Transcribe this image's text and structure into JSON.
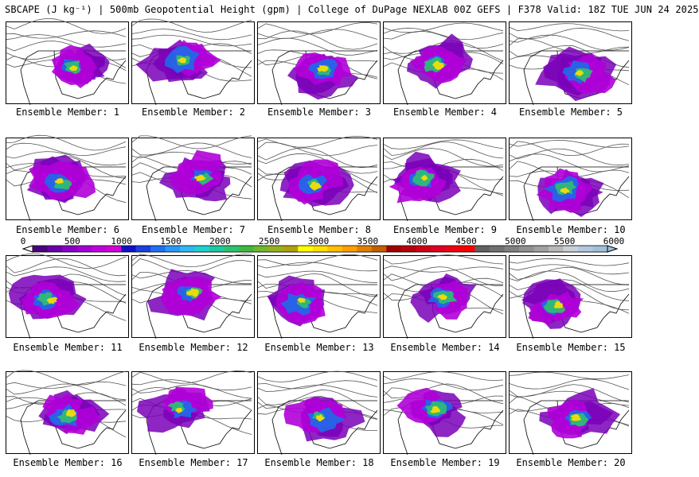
{
  "header": {
    "title": "SBCAPE (J kg⁻¹) | 500mb Geopotential Height (gpm) | College of DuPage NEXLAB 00Z GEFS | F378 Valid: 18Z TUE JUN 24 2025"
  },
  "panels": [
    {
      "label": "Ensemble Member: 1"
    },
    {
      "label": "Ensemble Member: 2"
    },
    {
      "label": "Ensemble Member: 3"
    },
    {
      "label": "Ensemble Member: 4"
    },
    {
      "label": "Ensemble Member: 5"
    },
    {
      "label": "Ensemble Member: 6"
    },
    {
      "label": "Ensemble Member: 7"
    },
    {
      "label": "Ensemble Member: 8"
    },
    {
      "label": "Ensemble Member: 9"
    },
    {
      "label": "Ensemble Member: 10"
    },
    {
      "label": "Ensemble Member: 11"
    },
    {
      "label": "Ensemble Member: 12"
    },
    {
      "label": "Ensemble Member: 13"
    },
    {
      "label": "Ensemble Member: 14"
    },
    {
      "label": "Ensemble Member: 15"
    },
    {
      "label": "Ensemble Member: 16"
    },
    {
      "label": "Ensemble Member: 17"
    },
    {
      "label": "Ensemble Member: 18"
    },
    {
      "label": "Ensemble Member: 19"
    },
    {
      "label": "Ensemble Member: 20"
    }
  ],
  "colorbar": {
    "ticks": [
      "0",
      "500",
      "1000",
      "1500",
      "2000",
      "2500",
      "3000",
      "3500",
      "4000",
      "4500",
      "5000",
      "5500",
      "6000"
    ],
    "colors": [
      "#4b0082",
      "#6a00a8",
      "#8b00c8",
      "#a300d8",
      "#c000e0",
      "#d400d4",
      "#1010c8",
      "#1a40e0",
      "#2070f0",
      "#2a98f8",
      "#30b8f0",
      "#20d0d0",
      "#20c8a0",
      "#30c070",
      "#40b840",
      "#70b830",
      "#98b020",
      "#b0a010",
      "#ffff00",
      "#ffe000",
      "#ffc000",
      "#ffa000",
      "#e08000",
      "#c06000",
      "#a00000",
      "#b80010",
      "#d00018",
      "#e00020",
      "#f00010",
      "#ff0000",
      "#606060",
      "#707070",
      "#808080",
      "#909090",
      "#a0a0a0",
      "#b8b8b8",
      "#c8d0d8",
      "#b0c8e0",
      "#9ec0d8"
    ]
  }
}
